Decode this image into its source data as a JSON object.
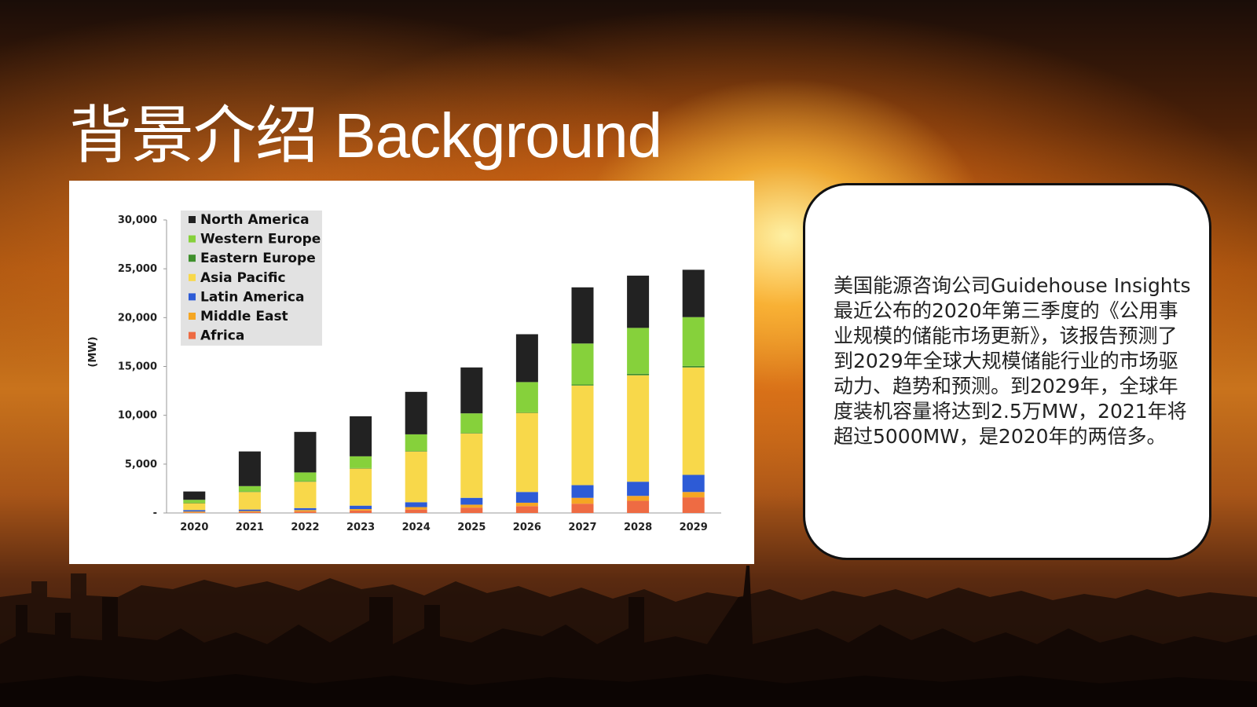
{
  "slide": {
    "title": "背景介绍 Background",
    "body_text": "美国能源咨询公司Guidehouse Insights最近公布的2020年第三季度的《公用事业规模的储能市场更新》，该报告预测了到2029年全球大规模储能行业的市场驱动力、趋势和预测。到2029年，全球年度装机容量将达到2.5万MW，2021年将超过5000MW，是2020年的两倍多。"
  },
  "chart_data": {
    "type": "bar",
    "stacked": true,
    "title": "",
    "xlabel": "",
    "ylabel": "(MW)",
    "ylim": [
      0,
      30000
    ],
    "yticks": [
      "-",
      "5,000",
      "10,000",
      "15,000",
      "20,000",
      "25,000",
      "30,000"
    ],
    "categories": [
      "2020",
      "2021",
      "2022",
      "2023",
      "2024",
      "2025",
      "2026",
      "2027",
      "2028",
      "2029"
    ],
    "legend_position": "top-left",
    "series": [
      {
        "name": "Africa",
        "color": "#ee6b43",
        "values": [
          50,
          100,
          150,
          250,
          350,
          550,
          700,
          950,
          1250,
          1600
        ]
      },
      {
        "name": "Middle East",
        "color": "#f5a623",
        "values": [
          100,
          100,
          150,
          150,
          250,
          300,
          350,
          600,
          500,
          550
        ]
      },
      {
        "name": "Latin America",
        "color": "#2d5bd6",
        "values": [
          150,
          150,
          200,
          350,
          500,
          700,
          1100,
          1300,
          1450,
          1750
        ]
      },
      {
        "name": "Asia Pacific",
        "color": "#f8d84a",
        "values": [
          700,
          1800,
          2700,
          3800,
          5200,
          6600,
          8100,
          10200,
          10900,
          11000
        ]
      },
      {
        "name": "Eastern Europe",
        "color": "#3f8f2c",
        "values": [
          50,
          50,
          50,
          50,
          50,
          50,
          50,
          100,
          150,
          150
        ]
      },
      {
        "name": "Western Europe",
        "color": "#86d13b",
        "values": [
          300,
          550,
          900,
          1200,
          1700,
          2000,
          3100,
          4200,
          4700,
          5000
        ]
      },
      {
        "name": "North America",
        "color": "#222222",
        "values": [
          850,
          3550,
          4150,
          4100,
          4350,
          4700,
          4900,
          5750,
          5350,
          4850
        ]
      }
    ]
  }
}
